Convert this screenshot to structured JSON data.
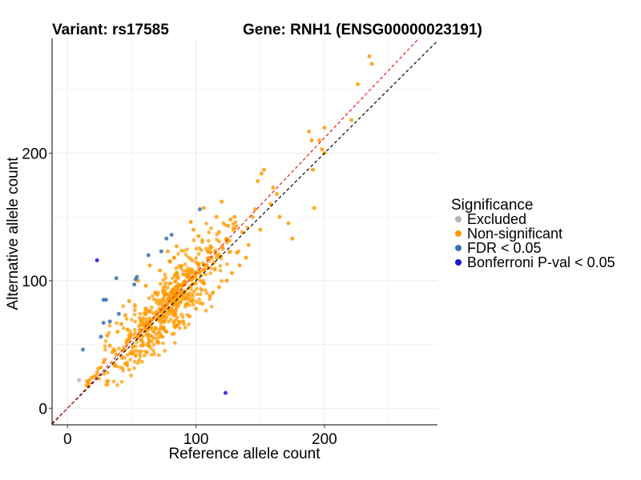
{
  "titles": {
    "variant": "Variant: rs17585",
    "gene": "Gene: RNH1 (ENSG00000023191)"
  },
  "chart_data": {
    "type": "scatter",
    "xlabel": "Reference allele count",
    "ylabel": "Alternative allele count",
    "xlim": [
      -12,
      288
    ],
    "ylim": [
      -13,
      290
    ],
    "x_ticks": [
      0,
      100,
      200
    ],
    "y_ticks": [
      0,
      100,
      200
    ],
    "x_minor_gridlines": [
      50,
      150,
      250
    ],
    "y_minor_gridlines": [
      50,
      150,
      250
    ],
    "grid": true,
    "legend": {
      "title": "Significance",
      "position": "right",
      "entries": [
        {
          "label": "Excluded",
          "color": "#b3b3b3"
        },
        {
          "label": "Non-significant",
          "color": "#ff9a00"
        },
        {
          "label": "FDR < 0.05",
          "color": "#3a70b0"
        },
        {
          "label": "Bonferroni P-val < 0.05",
          "color": "#1a1ad6"
        }
      ]
    },
    "reference_lines": [
      {
        "name": "y = x",
        "color": "#000000",
        "dashed": true,
        "slope": 1.0
      },
      {
        "name": "fitted",
        "color": "#e31a1c",
        "dashed": true,
        "slope": 1.06
      }
    ],
    "series": [
      {
        "category": "Excluded",
        "color": "#b3b3b3",
        "points": [
          [
            9,
            22
          ]
        ]
      },
      {
        "category": "Non-significant",
        "color": "#ff9a00",
        "cloud": {
          "count": 600,
          "seed": 17585,
          "x_range": [
            15,
            140
          ],
          "x_center": 80,
          "x_spread": 22,
          "slope": 1.03,
          "noise_sd": 13,
          "y_min": 18
        },
        "points": [
          [
            235,
            276
          ],
          [
            237,
            270
          ],
          [
            226,
            254
          ],
          [
            221,
            226
          ],
          [
            200,
            220
          ],
          [
            188,
            217
          ],
          [
            190,
            210
          ],
          [
            196,
            210
          ],
          [
            198,
            203
          ],
          [
            200,
            200
          ],
          [
            191,
            187
          ],
          [
            192,
            157
          ],
          [
            160,
            173
          ],
          [
            153,
            187
          ],
          [
            151,
            184
          ],
          [
            148,
            178
          ],
          [
            163,
            168
          ],
          [
            158,
            160
          ],
          [
            165,
            150
          ],
          [
            172,
            145
          ],
          [
            175,
            133
          ],
          [
            146,
            156
          ],
          [
            144,
            150
          ],
          [
            150,
            140
          ],
          [
            141,
            128
          ],
          [
            136,
            138
          ],
          [
            132,
            122
          ],
          [
            130,
            150
          ],
          [
            127,
            148
          ],
          [
            125,
            143
          ],
          [
            120,
            162
          ],
          [
            116,
            150
          ],
          [
            118,
            138
          ],
          [
            124,
            132
          ],
          [
            112,
            126
          ],
          [
            106,
            157
          ],
          [
            96,
            146
          ],
          [
            98,
            140
          ],
          [
            102,
            135
          ],
          [
            85,
            127
          ],
          [
            78,
            123
          ],
          [
            83,
            118
          ],
          [
            80,
            115
          ],
          [
            72,
            108
          ],
          [
            64,
            112
          ],
          [
            61,
            96
          ],
          [
            55,
            100
          ],
          [
            48,
            84
          ],
          [
            45,
            73
          ],
          [
            42,
            66
          ],
          [
            39,
            60
          ],
          [
            31,
            57
          ],
          [
            33,
            49
          ],
          [
            36,
            46
          ],
          [
            38,
            42
          ],
          [
            28,
            36
          ],
          [
            26,
            32
          ],
          [
            23,
            28
          ],
          [
            19,
            24
          ],
          [
            16,
            20
          ],
          [
            15,
            18
          ],
          [
            17,
            22
          ],
          [
            21,
            25
          ],
          [
            24,
            31
          ],
          [
            29,
            38
          ],
          [
            35,
            44
          ],
          [
            63,
            49
          ],
          [
            70,
            52
          ],
          [
            74,
            56
          ],
          [
            77,
            60
          ],
          [
            84,
            64
          ],
          [
            90,
            68
          ],
          [
            95,
            72
          ],
          [
            100,
            78
          ],
          [
            105,
            82
          ],
          [
            111,
            88
          ],
          [
            118,
            95
          ],
          [
            124,
            100
          ],
          [
            128,
            106
          ],
          [
            134,
            112
          ],
          [
            139,
            118
          ]
        ]
      },
      {
        "category": "FDR < 0.05",
        "color": "#3a70b0",
        "points": [
          [
            12,
            46
          ],
          [
            26,
            56
          ],
          [
            28,
            67
          ],
          [
            28,
            85
          ],
          [
            30,
            85
          ],
          [
            33,
            68
          ],
          [
            38,
            102
          ],
          [
            40,
            74
          ],
          [
            52,
            97
          ],
          [
            53,
            101
          ],
          [
            54,
            103
          ],
          [
            63,
            120
          ],
          [
            73,
            123
          ],
          [
            77,
            133
          ],
          [
            81,
            136
          ],
          [
            103,
            156
          ]
        ]
      },
      {
        "category": "Bonferroni P-val < 0.05",
        "color": "#1a1ad6",
        "points": [
          [
            23,
            116
          ],
          [
            123,
            12
          ]
        ]
      }
    ]
  }
}
